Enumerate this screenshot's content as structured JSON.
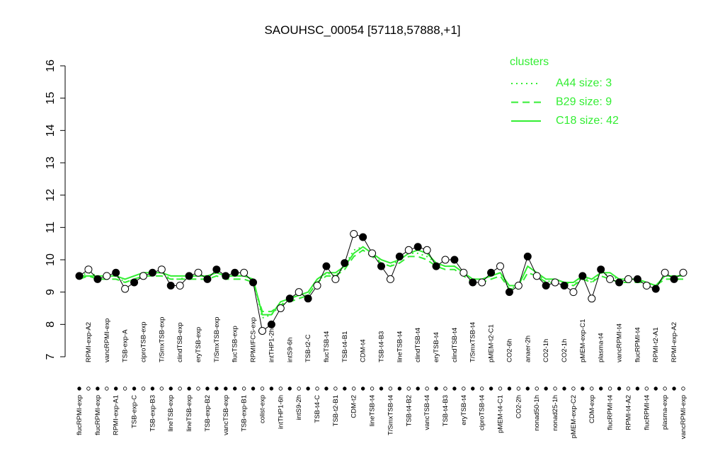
{
  "chart_data": {
    "type": "line",
    "title": "SAOUHSC_00054 [57118,57888,+1]",
    "legend_title": "clusters",
    "ylim": [
      7,
      16
    ],
    "yticks": [
      7,
      8,
      9,
      10,
      11,
      12,
      13,
      14,
      15,
      16
    ],
    "categories": [
      "flucRPMI-exp",
      "RPMI-exp-A2",
      "flucRPMI-exp",
      "vancRPMI-exp",
      "RPMI-exp-A1",
      "TSB-exp-A",
      "TSB-exp-C",
      "ciproTSB-exp",
      "TSB-exp-B3",
      "T/SmxTSB-exp",
      "lineTSB-exp",
      "clindTSB-exp",
      "lineTSB-exp",
      "eryTSB-exp",
      "TSB-exp-B2",
      "T/SmxTSB-exp",
      "vancTSB-exp",
      "flucTSB-exp",
      "TSB-exp-B1",
      "RPMI/FCS-exp",
      "colist-exp",
      "intTHP1-2h",
      "intTHP1-6h",
      "intS9-6h",
      "intS9-2h",
      "TSB-t2-C",
      "TSB-t4-C",
      "flucTSB-t4",
      "TSB-t2-B1",
      "TSB-t4-B1",
      "CDM-t2",
      "CDM-t4",
      "lineTSB-t4",
      "TSB-t4-B3",
      "T/SmxTSB-t4",
      "lineTSB-t4",
      "TSB-t4-B2",
      "clindTSB-t4",
      "vancTSB-t4",
      "eryTSB-t4",
      "TSB-t4-B3",
      "clindTSB-t4",
      "eryTSB-t4",
      "T/SmxTSB-t4",
      "ciproTSB-t4",
      "pMEM-t2-C1",
      "pMEM-t4-C1",
      "CO2-6h",
      "CO2-2h",
      "anaer-2h",
      "nonad50-1h",
      "CO2-1h",
      "nonad25-1h",
      "CO2-1h",
      "pMEM-exp-C2",
      "pMEM-exp-C1",
      "CDM-exp",
      "plasma-t4",
      "flucRPMI-t4",
      "vancRPMI-t4",
      "RPMI-t4-A2",
      "flucRPMI-t4",
      "flucRPMI-t4",
      "RPMI-t2-A1",
      "plasma-exp",
      "RPMI-exp-A2",
      "vancRPMI-exp"
    ],
    "values": [
      9.5,
      9.7,
      9.4,
      9.5,
      9.6,
      9.1,
      9.3,
      9.5,
      9.6,
      9.7,
      9.2,
      9.2,
      9.5,
      9.6,
      9.4,
      9.7,
      9.5,
      9.6,
      9.6,
      9.3,
      7.8,
      8.0,
      8.5,
      8.8,
      9.0,
      8.8,
      9.2,
      9.8,
      9.4,
      9.9,
      10.8,
      10.7,
      10.2,
      9.8,
      9.4,
      10.1,
      10.3,
      10.4,
      10.3,
      9.8,
      10.0,
      10.0,
      9.6,
      9.3,
      9.3,
      9.6,
      9.8,
      9.0,
      9.2,
      10.1,
      9.5,
      9.2,
      9.3,
      9.2,
      9.0,
      9.5,
      8.8,
      9.7,
      9.4,
      9.3,
      9.4,
      9.4,
      9.2,
      9.1,
      9.6,
      9.4,
      9.6
    ],
    "filled": [
      true,
      false,
      true,
      false,
      true,
      false,
      true,
      false,
      true,
      false,
      true,
      false,
      true,
      false,
      true,
      true,
      true,
      true,
      false,
      true,
      false,
      true,
      false,
      true,
      false,
      true,
      false,
      true,
      false,
      true,
      false,
      true,
      false,
      true,
      false,
      true,
      false,
      true,
      false,
      true,
      false,
      true,
      false,
      true,
      false,
      true,
      false,
      true,
      false,
      true,
      false,
      true,
      false,
      true,
      false,
      true,
      false,
      true,
      false,
      true,
      false,
      true,
      false,
      true,
      false,
      true,
      false
    ],
    "color": "#000000",
    "series": [
      {
        "name": "A44 size: 3",
        "color": "#33ee33",
        "dash": "dotted",
        "values": [
          9.5,
          9.6,
          9.5,
          9.5,
          9.5,
          9.3,
          9.4,
          9.5,
          9.6,
          9.6,
          9.4,
          9.4,
          9.5,
          9.5,
          9.5,
          9.6,
          9.5,
          9.5,
          9.5,
          9.4,
          8.2,
          8.3,
          8.6,
          8.8,
          8.9,
          8.9,
          9.3,
          9.6,
          9.5,
          9.8,
          10.3,
          10.4,
          10.2,
          9.9,
          9.8,
          10.0,
          10.2,
          10.2,
          10.1,
          9.9,
          9.8,
          9.8,
          9.6,
          9.4,
          9.4,
          9.5,
          9.6,
          9.1,
          9.2,
          9.8,
          9.6,
          9.3,
          9.4,
          9.3,
          9.2,
          9.5,
          9.3,
          9.6,
          9.5,
          9.4,
          9.4,
          9.4,
          9.3,
          9.2,
          9.5,
          9.5,
          9.5
        ]
      },
      {
        "name": "B29 size: 9",
        "color": "#33ee33",
        "dash": "dashed",
        "values": [
          9.4,
          9.5,
          9.4,
          9.4,
          9.4,
          9.3,
          9.4,
          9.5,
          9.5,
          9.5,
          9.4,
          9.4,
          9.4,
          9.4,
          9.4,
          9.5,
          9.4,
          9.4,
          9.4,
          9.3,
          8.4,
          8.4,
          8.6,
          8.7,
          8.8,
          8.9,
          9.3,
          9.5,
          9.5,
          9.7,
          10.1,
          10.3,
          10.1,
          9.9,
          9.8,
          9.9,
          10.1,
          10.1,
          10.0,
          9.8,
          9.7,
          9.7,
          9.5,
          9.3,
          9.3,
          9.4,
          9.5,
          9.1,
          9.1,
          9.6,
          9.5,
          9.3,
          9.3,
          9.2,
          9.2,
          9.4,
          9.3,
          9.5,
          9.4,
          9.3,
          9.3,
          9.3,
          9.3,
          9.2,
          9.4,
          9.4,
          9.4
        ]
      },
      {
        "name": "C18 size: 42",
        "color": "#33ee33",
        "dash": "solid",
        "values": [
          9.5,
          9.5,
          9.5,
          9.5,
          9.5,
          9.4,
          9.5,
          9.6,
          9.6,
          9.6,
          9.5,
          9.5,
          9.5,
          9.5,
          9.5,
          9.6,
          9.5,
          9.5,
          9.5,
          9.4,
          8.3,
          8.3,
          8.7,
          8.8,
          8.9,
          9.0,
          9.4,
          9.6,
          9.6,
          9.8,
          10.2,
          10.4,
          10.2,
          10.0,
          9.9,
          10.0,
          10.2,
          10.3,
          10.2,
          9.9,
          9.8,
          9.8,
          9.6,
          9.4,
          9.4,
          9.5,
          9.6,
          9.2,
          9.2,
          9.8,
          9.6,
          9.4,
          9.4,
          9.3,
          9.3,
          9.5,
          9.4,
          9.6,
          9.6,
          9.4,
          9.4,
          9.4,
          9.3,
          9.2,
          9.5,
          9.5,
          9.5
        ]
      }
    ]
  }
}
